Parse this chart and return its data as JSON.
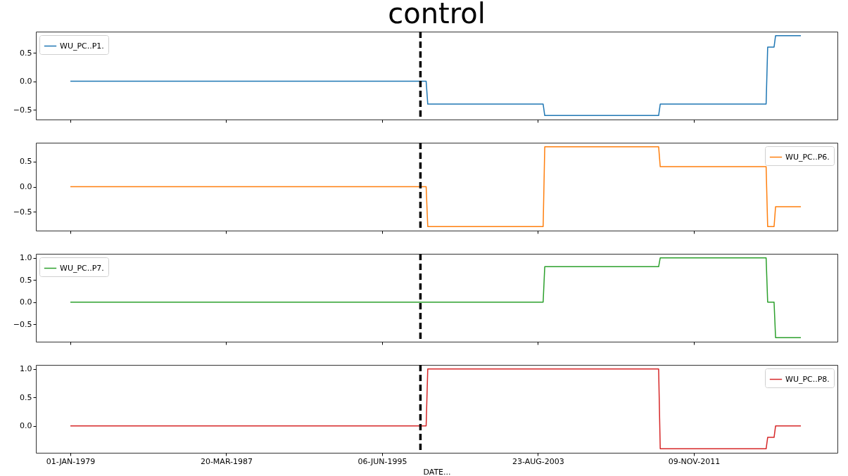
{
  "chart_data": [
    {
      "type": "line",
      "title": "control",
      "xlim": [
        "1977-03-08",
        "2019-06-05"
      ],
      "xticks": [
        {
          "value": "1979-01-01",
          "label": null
        },
        {
          "value": "1987-03-20",
          "label": null
        },
        {
          "value": "1995-06-06",
          "label": null
        },
        {
          "value": "2003-08-23",
          "label": null
        },
        {
          "value": "2011-11-09",
          "label": null
        }
      ],
      "ylim": [
        -0.67,
        0.87
      ],
      "yticks": [
        {
          "value": -0.5,
          "label": "−0.5"
        },
        {
          "value": 0,
          "label": "0.0"
        },
        {
          "value": 0.5,
          "label": "0.5"
        }
      ],
      "tick_labels": "y",
      "legend": "top left",
      "grid": false,
      "ref_lines": [
        {
          "axis": "x",
          "value": "1997-06-13",
          "color": "#000000",
          "line_style": "dashed"
        }
      ],
      "series": [
        {
          "name": "WU_PC..P1.",
          "color": "#1f77b4",
          "x": [
            "1979-01",
            "1997-10",
            "1997-11",
            "2003-12",
            "2004-01",
            "2010-01",
            "2010-02",
            "2015-09",
            "2015-10",
            "2016-02",
            "2016-03",
            "2017-07"
          ],
          "values": [
            0,
            0,
            -0.4,
            -0.4,
            -0.6,
            -0.6,
            -0.4,
            -0.4,
            0.6,
            0.6,
            0.8,
            0.8
          ]
        }
      ]
    },
    {
      "type": "line",
      "xlim": [
        "1977-03-08",
        "2019-06-05"
      ],
      "xticks": [
        {
          "value": "1979-01-01",
          "label": null
        },
        {
          "value": "1987-03-20",
          "label": null
        },
        {
          "value": "1995-06-06",
          "label": null
        },
        {
          "value": "2003-08-23",
          "label": null
        },
        {
          "value": "2011-11-09",
          "label": null
        }
      ],
      "ylim": [
        -0.88,
        0.88
      ],
      "yticks": [
        {
          "value": -0.5,
          "label": "−0.5"
        },
        {
          "value": 0,
          "label": "0.0"
        },
        {
          "value": 0.5,
          "label": "0.5"
        }
      ],
      "tick_labels": "y",
      "legend": "top right",
      "grid": false,
      "ref_lines": [
        {
          "axis": "x",
          "value": "1997-06-13",
          "color": "#000000",
          "line_style": "dashed"
        }
      ],
      "series": [
        {
          "name": "WU_PC..P6.",
          "color": "#ff7f0e",
          "x": [
            "1979-01",
            "1997-10",
            "1997-11",
            "2003-12",
            "2004-01",
            "2010-01",
            "2010-02",
            "2015-09",
            "2015-10",
            "2016-02",
            "2016-03",
            "2017-07"
          ],
          "values": [
            0,
            0,
            -0.8,
            -0.8,
            0.8,
            0.8,
            0.4,
            0.4,
            -0.8,
            -0.8,
            -0.4,
            -0.4
          ]
        }
      ]
    },
    {
      "type": "line",
      "xlim": [
        "1977-03-08",
        "2019-06-05"
      ],
      "xticks": [
        {
          "value": "1979-01-01",
          "label": null
        },
        {
          "value": "1987-03-20",
          "label": null
        },
        {
          "value": "1995-06-06",
          "label": null
        },
        {
          "value": "2003-08-23",
          "label": null
        },
        {
          "value": "2011-11-09",
          "label": null
        }
      ],
      "ylim": [
        -0.89,
        1.09
      ],
      "yticks": [
        {
          "value": -0.5,
          "label": "−0.5"
        },
        {
          "value": 0,
          "label": "0.0"
        },
        {
          "value": 0.5,
          "label": "0.5"
        },
        {
          "value": 1,
          "label": "1.0"
        }
      ],
      "tick_labels": "y",
      "legend": "top left",
      "grid": false,
      "ref_lines": [
        {
          "axis": "x",
          "value": "1997-06-13",
          "color": "#000000",
          "line_style": "dashed"
        }
      ],
      "series": [
        {
          "name": "WU_PC..P7.",
          "color": "#2ca02c",
          "x": [
            "1979-01",
            "2003-12",
            "2004-01",
            "2010-01",
            "2010-02",
            "2015-09",
            "2015-10",
            "2016-02",
            "2016-03",
            "2017-07"
          ],
          "values": [
            0,
            0,
            0.8,
            0.8,
            1,
            1,
            0,
            0,
            -0.8,
            -0.8
          ]
        }
      ]
    },
    {
      "type": "line",
      "xlabel": "DATE...",
      "xlim": [
        "1977-03-08",
        "2019-06-05"
      ],
      "xticks": [
        {
          "value": "1979-01-01",
          "label": "01-JAN-1979"
        },
        {
          "value": "1987-03-20",
          "label": "20-MAR-1987"
        },
        {
          "value": "1995-06-06",
          "label": "06-JUN-1995"
        },
        {
          "value": "2003-08-23",
          "label": "23-AUG-2003"
        },
        {
          "value": "2011-11-09",
          "label": "09-NOV-2011"
        }
      ],
      "ylim": [
        -0.47,
        1.07
      ],
      "yticks": [
        {
          "value": 0,
          "label": "0.0"
        },
        {
          "value": 0.5,
          "label": "0.5"
        },
        {
          "value": 1,
          "label": "1.0"
        }
      ],
      "legend": "top right",
      "grid": false,
      "ref_lines": [
        {
          "axis": "x",
          "value": "1997-06-13",
          "color": "#000000",
          "line_style": "dashed"
        }
      ],
      "series": [
        {
          "name": "WU_PC..P8.",
          "color": "#d62728",
          "x": [
            "1979-01",
            "1997-10",
            "1997-11",
            "2010-01",
            "2010-02",
            "2015-09",
            "2015-10",
            "2016-02",
            "2016-03",
            "2017-07"
          ],
          "values": [
            0,
            0,
            1,
            1,
            -0.4,
            -0.4,
            -0.2,
            -0.2,
            0,
            0
          ]
        }
      ]
    }
  ]
}
